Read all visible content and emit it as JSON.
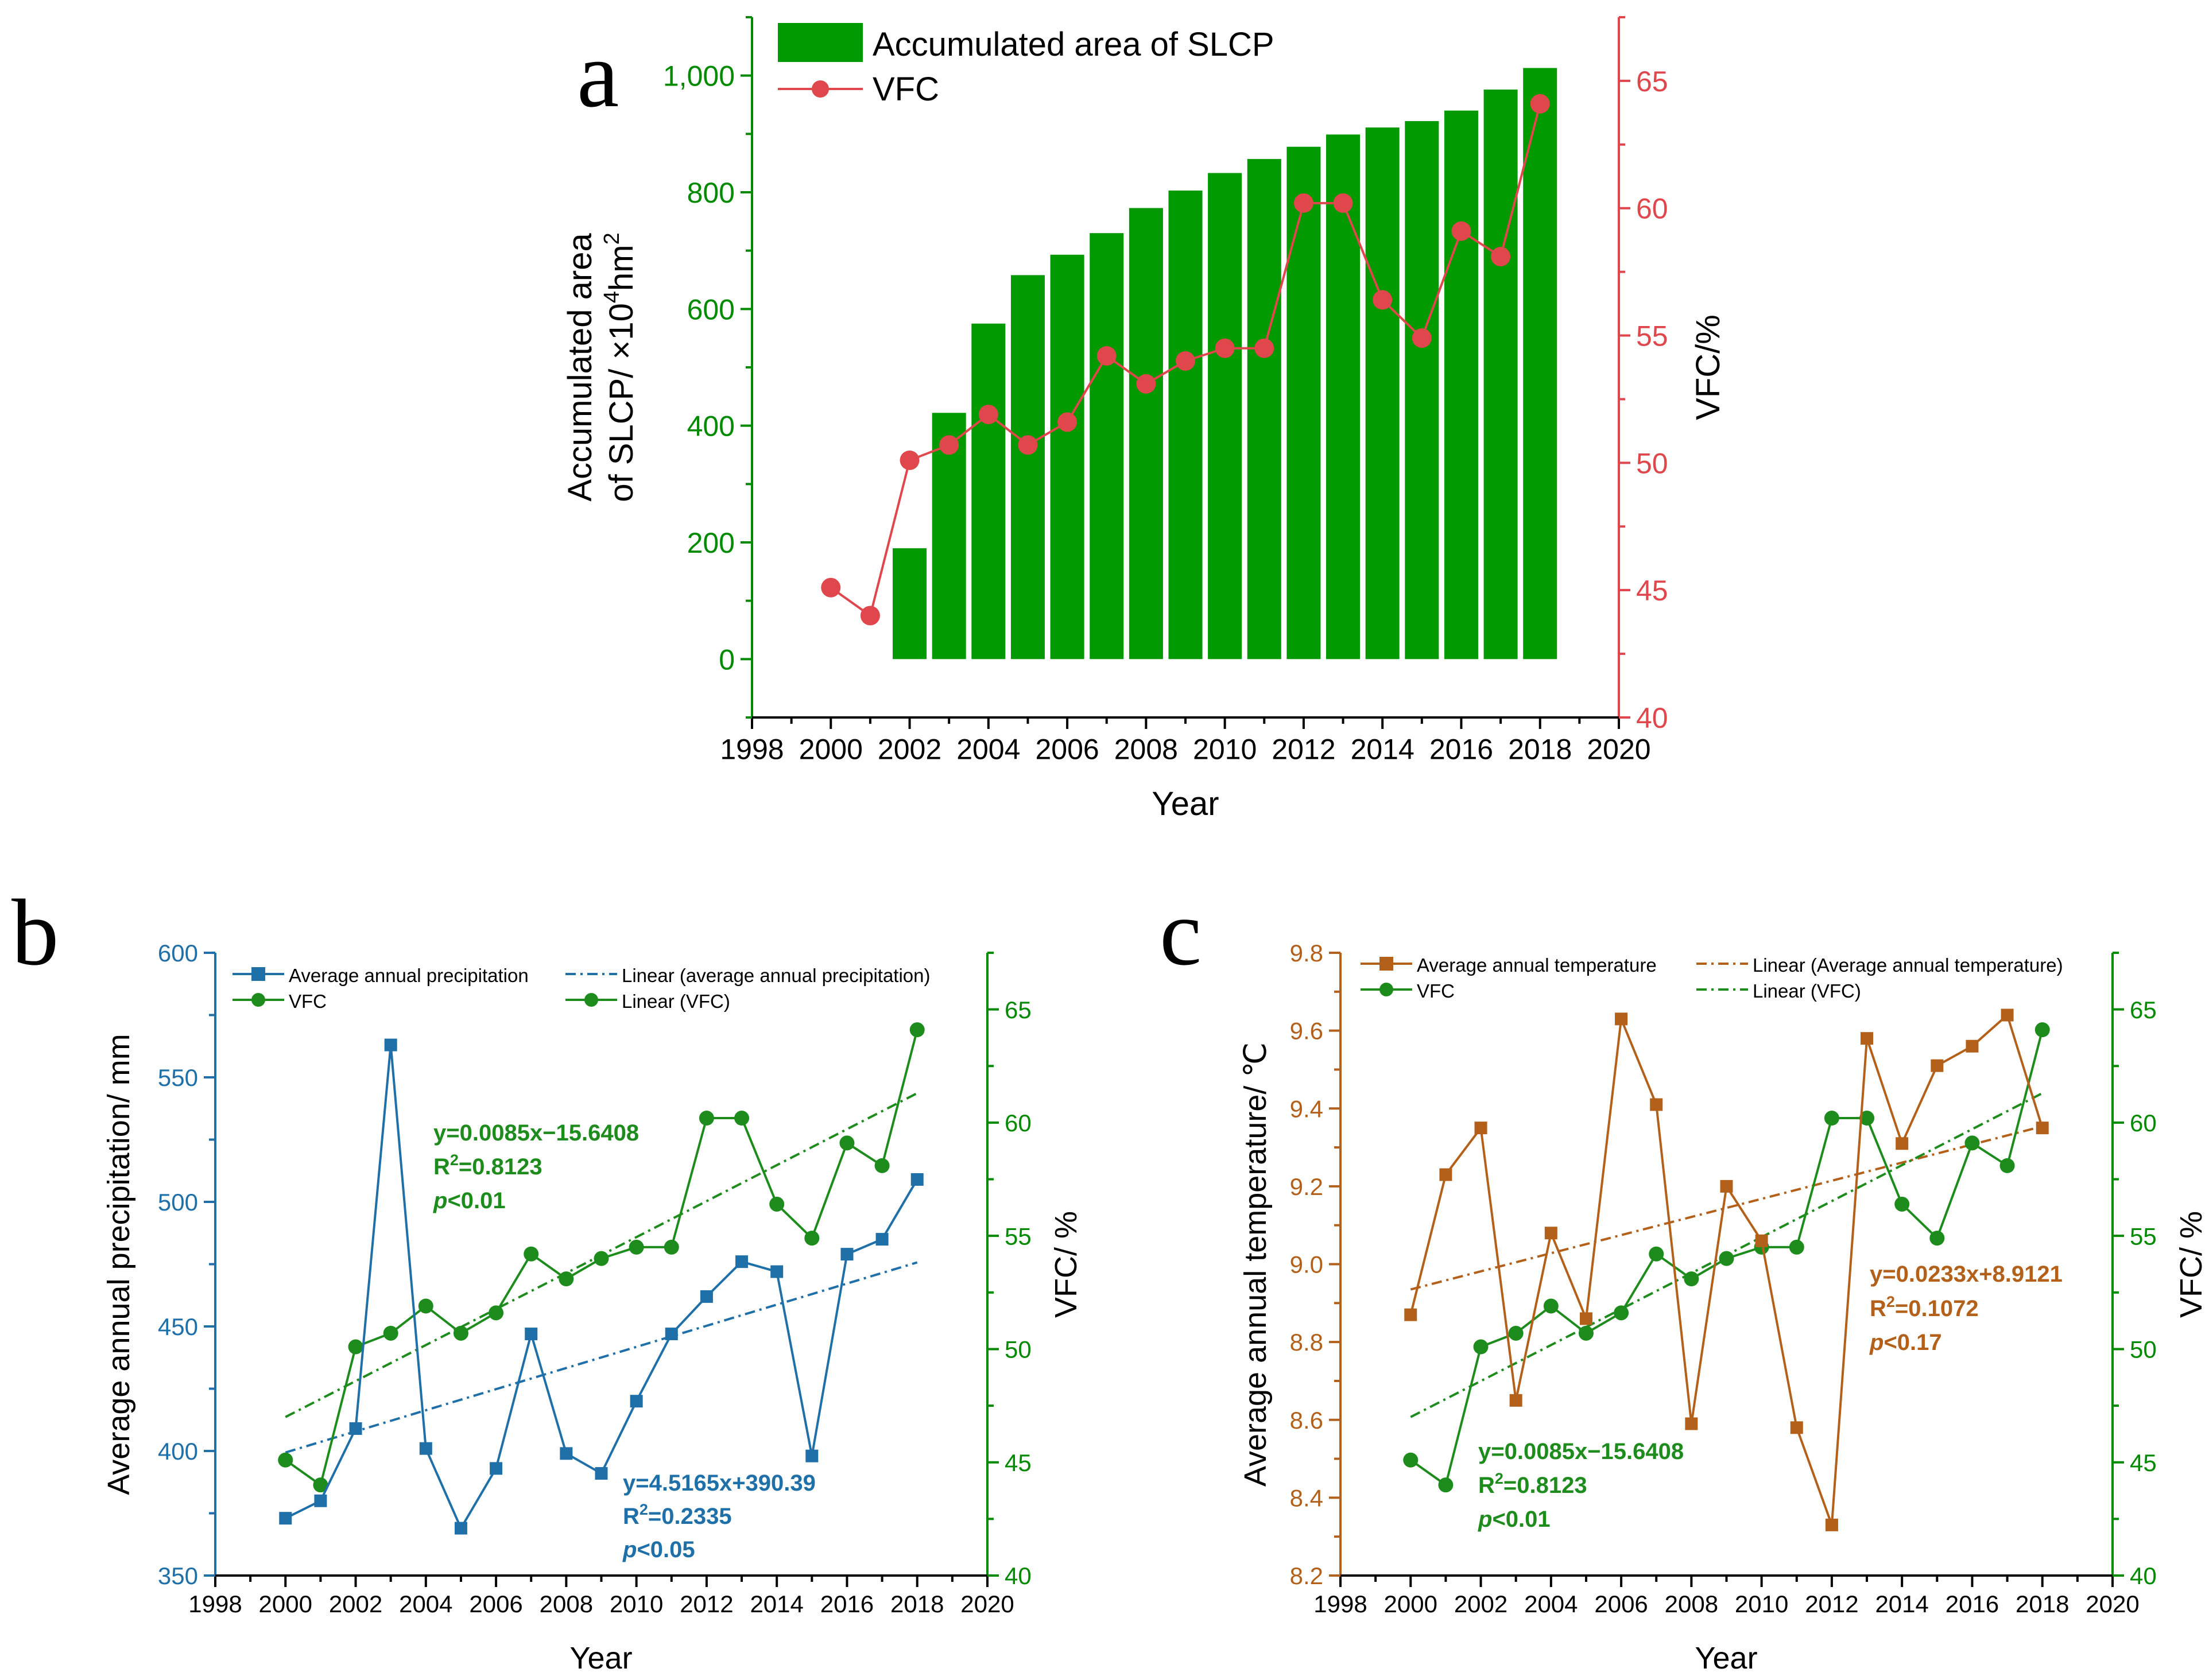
{
  "colors": {
    "green": "#008a00",
    "bar_green": "#009900",
    "red": "#e0474c",
    "blue": "#1f6fa8",
    "brown": "#b3601a",
    "vfc_green": "#1d8c1d",
    "black": "#000000"
  },
  "chart_data": [
    {
      "id": "a",
      "panel_label": "a",
      "type": "bar+line",
      "xlabel": "Year",
      "xlim": [
        1998,
        2020
      ],
      "xticks": [
        "1998",
        "2000",
        "2002",
        "2004",
        "2006",
        "2008",
        "2010",
        "2012",
        "2014",
        "2016",
        "2018",
        "2020"
      ],
      "ylabel_left_line1": "Accumulated area",
      "ylabel_left_line2_prefix": "of SLCP/ ×10",
      "ylabel_left_sup": "4",
      "ylabel_left_suffix": "hm",
      "ylabel_left_sup2": "2",
      "ylim_left": [
        -100,
        1100
      ],
      "yticks_left": [
        "0",
        "200",
        "400",
        "600",
        "800",
        "1,000"
      ],
      "ylabel_right": "VFC/%",
      "ylim_right": [
        40,
        67.5
      ],
      "yticks_right": [
        "40",
        "45",
        "50",
        "55",
        "60",
        "65"
      ],
      "legend": [
        "Accumulated area of SLCP",
        "VFC"
      ],
      "bars": {
        "name": "Accumulated area of SLCP",
        "x": [
          2002,
          2003,
          2004,
          2005,
          2006,
          2007,
          2008,
          2009,
          2010,
          2011,
          2012,
          2013,
          2014,
          2015,
          2016,
          2017,
          2018
        ],
        "values": [
          190,
          422,
          575,
          658,
          693,
          730,
          773,
          803,
          833,
          857,
          878,
          899,
          911,
          922,
          940,
          976,
          1013
        ]
      },
      "line": {
        "name": "VFC",
        "x": [
          2000,
          2001,
          2002,
          2003,
          2004,
          2005,
          2006,
          2007,
          2008,
          2009,
          2010,
          2011,
          2012,
          2013,
          2014,
          2015,
          2016,
          2017,
          2018
        ],
        "values": [
          45.1,
          44.0,
          50.1,
          50.7,
          51.9,
          50.7,
          51.6,
          54.2,
          53.1,
          54.0,
          54.5,
          54.5,
          60.2,
          60.2,
          56.4,
          54.9,
          59.1,
          58.1,
          64.1
        ]
      }
    },
    {
      "id": "b",
      "panel_label": "b",
      "type": "line",
      "xlabel": "Year",
      "xlim": [
        1998,
        2020
      ],
      "xticks": [
        "1998",
        "2000",
        "2002",
        "2004",
        "2006",
        "2008",
        "2010",
        "2012",
        "2014",
        "2016",
        "2018",
        "2020"
      ],
      "ylabel_left": "Average annual precipitation/ mm",
      "ylim_left": [
        350,
        600
      ],
      "yticks_left": [
        "350",
        "400",
        "450",
        "500",
        "550",
        "600"
      ],
      "ylabel_right": "VFC/ %",
      "ylim_right": [
        40,
        67.5
      ],
      "yticks_right": [
        "40",
        "45",
        "50",
        "55",
        "60",
        "65"
      ],
      "legend": [
        "Average annual precipitation",
        "Linear (average annual precipitation)",
        "VFC",
        "Linear (VFC)"
      ],
      "series": [
        {
          "name": "Average annual precipitation",
          "axis": "left",
          "x": [
            2000,
            2001,
            2002,
            2003,
            2004,
            2005,
            2006,
            2007,
            2008,
            2009,
            2010,
            2011,
            2012,
            2013,
            2014,
            2015,
            2016,
            2017,
            2018
          ],
          "values": [
            373,
            380,
            409,
            563,
            401,
            369,
            393,
            447,
            399,
            391,
            420,
            447,
            462,
            476,
            472,
            398,
            479,
            485,
            509
          ]
        },
        {
          "name": "VFC",
          "axis": "right",
          "x": [
            2000,
            2001,
            2002,
            2003,
            2004,
            2005,
            2006,
            2007,
            2008,
            2009,
            2010,
            2011,
            2012,
            2013,
            2014,
            2015,
            2016,
            2017,
            2018
          ],
          "values": [
            45.1,
            44.0,
            50.1,
            50.7,
            51.9,
            50.7,
            51.6,
            54.2,
            53.1,
            54.0,
            54.5,
            54.5,
            60.2,
            60.2,
            56.4,
            54.9,
            59.1,
            58.1,
            64.1
          ]
        }
      ],
      "trendlines": [
        {
          "name": "Linear (average annual precipitation)",
          "axis": "left",
          "x": [
            2000,
            2018
          ],
          "values": [
            399.4,
            475.7
          ]
        },
        {
          "name": "Linear (VFC)",
          "axis": "right",
          "x": [
            2000,
            2018
          ],
          "values": [
            47.0,
            61.3
          ]
        }
      ],
      "annotations": {
        "vfc": {
          "line1": "y=0.0085x−15.6408",
          "line2_prefix": "R",
          "line2_sup": "2",
          "line2_suffix": "=0.8123",
          "line3_italic": "p",
          "line3_rest": "<0.01"
        },
        "precip": {
          "line1": "y=4.5165x+390.39",
          "line2_prefix": "R",
          "line2_sup": "2",
          "line2_suffix": "=0.2335",
          "line3_italic": "p",
          "line3_rest": "<0.05"
        }
      }
    },
    {
      "id": "c",
      "panel_label": "c",
      "type": "line",
      "xlabel": "Year",
      "xlim": [
        1998,
        2020
      ],
      "xticks": [
        "1998",
        "2000",
        "2002",
        "2004",
        "2006",
        "2008",
        "2010",
        "2012",
        "2014",
        "2016",
        "2018",
        "2020"
      ],
      "ylabel_left": "Average annual temperature/ ℃",
      "ylim_left": [
        8.2,
        9.8
      ],
      "yticks_left": [
        "8.2",
        "8.4",
        "8.6",
        "8.8",
        "9.0",
        "9.2",
        "9.4",
        "9.6",
        "9.8"
      ],
      "ylabel_right": "VFC/ %",
      "ylim_right": [
        40,
        67.5
      ],
      "yticks_right": [
        "40",
        "45",
        "50",
        "55",
        "60",
        "65"
      ],
      "legend": [
        "Average annual temperature",
        "Linear (Average annual temperature)",
        "VFC",
        "Linear (VFC)"
      ],
      "series": [
        {
          "name": "Average annual temperature",
          "axis": "left",
          "x": [
            2000,
            2001,
            2002,
            2003,
            2004,
            2005,
            2006,
            2007,
            2008,
            2009,
            2010,
            2011,
            2012,
            2013,
            2014,
            2015,
            2016,
            2017,
            2018
          ],
          "values": [
            8.87,
            9.23,
            9.35,
            8.65,
            9.08,
            8.86,
            9.63,
            9.41,
            8.59,
            9.2,
            9.06,
            8.58,
            8.33,
            9.58,
            9.31,
            9.51,
            9.56,
            9.64,
            9.35
          ]
        },
        {
          "name": "VFC",
          "axis": "right",
          "x": [
            2000,
            2001,
            2002,
            2003,
            2004,
            2005,
            2006,
            2007,
            2008,
            2009,
            2010,
            2011,
            2012,
            2013,
            2014,
            2015,
            2016,
            2017,
            2018
          ],
          "values": [
            45.1,
            44.0,
            50.1,
            50.7,
            51.9,
            50.7,
            51.6,
            54.2,
            53.1,
            54.0,
            54.5,
            54.5,
            60.2,
            60.2,
            56.4,
            54.9,
            59.1,
            58.1,
            64.1
          ]
        }
      ],
      "trendlines": [
        {
          "name": "Linear (Average annual temperature)",
          "axis": "left",
          "x": [
            2000,
            2018
          ],
          "values": [
            8.935,
            9.354
          ]
        },
        {
          "name": "Linear (VFC)",
          "axis": "right",
          "x": [
            2000,
            2018
          ],
          "values": [
            47.0,
            61.3
          ]
        }
      ],
      "annotations": {
        "temp": {
          "line1": "y=0.0233x+8.9121",
          "line2_prefix": "R",
          "line2_sup": "2",
          "line2_suffix": "=0.1072",
          "line3_italic": "p",
          "line3_rest": "<0.17"
        },
        "vfc": {
          "line1": "y=0.0085x−15.6408",
          "line2_prefix": "R",
          "line2_sup": "2",
          "line2_suffix": "=0.8123",
          "line3_italic": "p",
          "line3_rest": "<0.01"
        }
      }
    }
  ]
}
